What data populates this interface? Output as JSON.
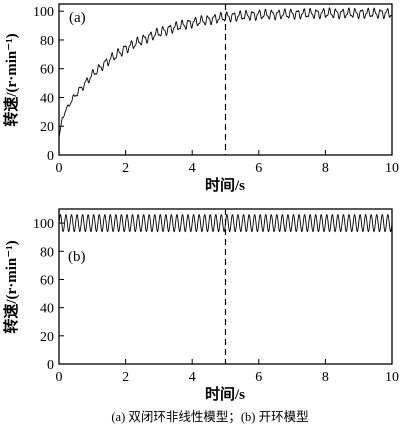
{
  "caption": "(a) 双闭环非线性模型；(b) 开环模型",
  "chart_data": [
    {
      "type": "line",
      "panel_label": "(a)",
      "xlabel": "时间/s",
      "ylabel": "转速/(r·min⁻¹)",
      "xlim": [
        0,
        10
      ],
      "ylim": [
        0,
        105
      ],
      "xticks": [
        0,
        2,
        4,
        6,
        8,
        10
      ],
      "yticks": [
        0,
        20,
        40,
        60,
        80,
        100
      ],
      "x_tick_labels": [
        "0",
        "2",
        "4",
        "6",
        "8",
        "10"
      ],
      "y_tick_labels": [
        "0",
        "20",
        "40",
        "60",
        "80",
        "100"
      ],
      "grid": false,
      "vertical_marker_x": 5,
      "series": [
        {
          "values_description_free": true,
          "x": [
            0,
            0.1,
            0.3,
            0.5,
            0.8,
            1.0,
            1.5,
            2.0,
            2.5,
            3.0,
            3.5,
            4.0,
            4.5,
            5.0,
            6.0,
            7.0,
            8.0,
            9.0,
            10.0
          ],
          "y": [
            12,
            26,
            35,
            42,
            50,
            56,
            66,
            74,
            80,
            85,
            89,
            92,
            94,
            96,
            97.5,
            98,
            98.5,
            98.5,
            98.5
          ],
          "oscillation_amplitude": [
            0,
            1,
            1.5,
            2,
            2.5,
            2.5,
            3,
            3,
            3,
            3,
            3,
            3,
            3,
            3,
            3,
            3,
            3,
            3,
            3
          ]
        }
      ]
    },
    {
      "type": "line",
      "panel_label": "(b)",
      "xlabel": "时间/s",
      "ylabel": "转速/(r·min⁻¹)",
      "xlim": [
        0,
        10
      ],
      "ylim": [
        0,
        110
      ],
      "xticks": [
        0,
        2,
        4,
        6,
        8,
        10
      ],
      "yticks": [
        0,
        20,
        40,
        60,
        80,
        100
      ],
      "x_tick_labels": [
        "0",
        "2",
        "4",
        "6",
        "8",
        "10"
      ],
      "y_tick_labels": [
        "0",
        "20",
        "40",
        "60",
        "80",
        "100"
      ],
      "grid": false,
      "vertical_marker_x": 5,
      "series": [
        {
          "x": [
            0,
            10
          ],
          "y": [
            100,
            100
          ],
          "oscillation_amplitude": [
            6,
            6
          ],
          "oscillation_cycles": 60
        }
      ]
    }
  ]
}
